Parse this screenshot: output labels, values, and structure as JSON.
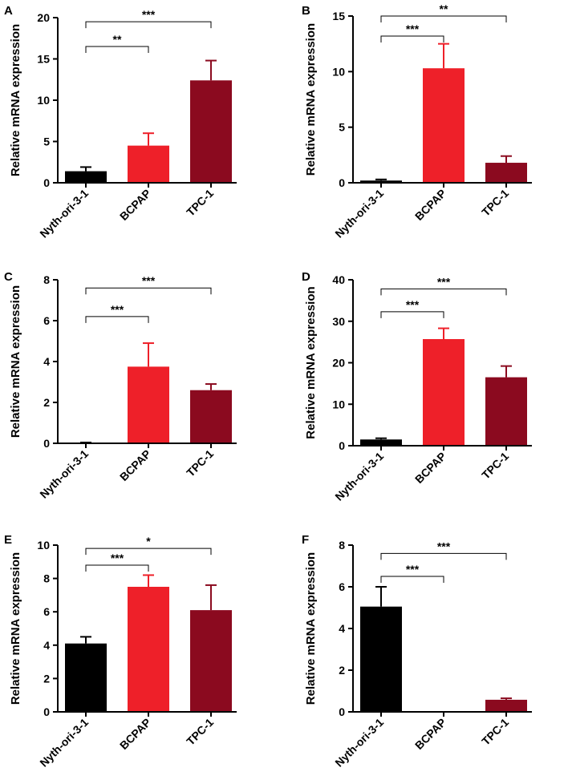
{
  "chart_data": [
    {
      "panel": "A",
      "type": "bar",
      "ylabel": "Relative mRNA expression",
      "categories": [
        "Nyth-ori-3-1",
        "BCPAP",
        "TPC-1"
      ],
      "values": [
        1.4,
        4.5,
        12.4
      ],
      "errors": [
        0.5,
        1.5,
        2.4
      ],
      "colors": [
        "#000000",
        "#ee2029",
        "#8b0a1f"
      ],
      "ylim": [
        0,
        20
      ],
      "yticks": [
        0,
        5,
        10,
        15,
        20
      ],
      "significance": [
        {
          "from": 0,
          "to": 1,
          "label": "**",
          "y": 16.5
        },
        {
          "from": 0,
          "to": 2,
          "label": "***",
          "y": 19.5
        }
      ]
    },
    {
      "panel": "B",
      "type": "bar",
      "ylabel": "Relative mRNA expression",
      "categories": [
        "Nyth-ori-3-1",
        "BCPAP",
        "TPC-1"
      ],
      "values": [
        0.2,
        10.3,
        1.8
      ],
      "errors": [
        0.1,
        2.2,
        0.6
      ],
      "colors": [
        "#000000",
        "#ee2029",
        "#8b0a1f"
      ],
      "ylim": [
        0,
        15
      ],
      "yticks": [
        0,
        5,
        10,
        15
      ],
      "significance": [
        {
          "from": 0,
          "to": 1,
          "label": "***",
          "y": 13.2
        },
        {
          "from": 0,
          "to": 2,
          "label": "**",
          "y": 15.0
        }
      ]
    },
    {
      "panel": "C",
      "type": "bar",
      "ylabel": "Relative mRNA expression",
      "categories": [
        "Nyth-ori-3-1",
        "BCPAP",
        "TPC-1"
      ],
      "values": [
        0.03,
        3.75,
        2.6
      ],
      "errors": [
        0.01,
        1.15,
        0.3
      ],
      "colors": [
        "#000000",
        "#ee2029",
        "#8b0a1f"
      ],
      "ylim": [
        0,
        8
      ],
      "yticks": [
        0,
        2,
        4,
        6,
        8
      ],
      "significance": [
        {
          "from": 0,
          "to": 1,
          "label": "***",
          "y": 6.2
        },
        {
          "from": 0,
          "to": 2,
          "label": "***",
          "y": 7.6
        }
      ]
    },
    {
      "panel": "D",
      "type": "bar",
      "ylabel": "Relative mRNA expression",
      "categories": [
        "Nyth-ori-3-1",
        "BCPAP",
        "TPC-1"
      ],
      "values": [
        1.5,
        25.7,
        16.5
      ],
      "errors": [
        0.3,
        2.6,
        2.7
      ],
      "colors": [
        "#000000",
        "#ee2029",
        "#8b0a1f"
      ],
      "ylim": [
        0,
        40
      ],
      "yticks": [
        0,
        10,
        20,
        30,
        40
      ],
      "significance": [
        {
          "from": 0,
          "to": 1,
          "label": "***",
          "y": 32.3
        },
        {
          "from": 0,
          "to": 2,
          "label": "***",
          "y": 37.8
        }
      ]
    },
    {
      "panel": "E",
      "type": "bar",
      "ylabel": "Relative mRNA expression",
      "categories": [
        "Nyth-ori-3-1",
        "BCPAP",
        "TPC-1"
      ],
      "values": [
        4.1,
        7.5,
        6.1
      ],
      "errors": [
        0.4,
        0.7,
        1.5
      ],
      "colors": [
        "#000000",
        "#ee2029",
        "#8b0a1f"
      ],
      "ylim": [
        0,
        10
      ],
      "yticks": [
        0,
        2,
        4,
        6,
        8,
        10
      ],
      "significance": [
        {
          "from": 0,
          "to": 1,
          "label": "***",
          "y": 8.8
        },
        {
          "from": 0,
          "to": 2,
          "label": "*",
          "y": 9.8
        }
      ]
    },
    {
      "panel": "F",
      "type": "bar",
      "ylabel": "Relative mRNA expression",
      "categories": [
        "Nyth-ori-3-1",
        "BCPAP",
        "TPC-1"
      ],
      "values": [
        5.05,
        0.0,
        0.58
      ],
      "errors": [
        0.95,
        0.0,
        0.07
      ],
      "colors": [
        "#000000",
        "#ee2029",
        "#8b0a1f"
      ],
      "ylim": [
        0,
        8
      ],
      "yticks": [
        0,
        2,
        4,
        6,
        8
      ],
      "significance": [
        {
          "from": 0,
          "to": 1,
          "label": "***",
          "y": 6.5
        },
        {
          "from": 0,
          "to": 2,
          "label": "***",
          "y": 7.6
        }
      ]
    }
  ]
}
